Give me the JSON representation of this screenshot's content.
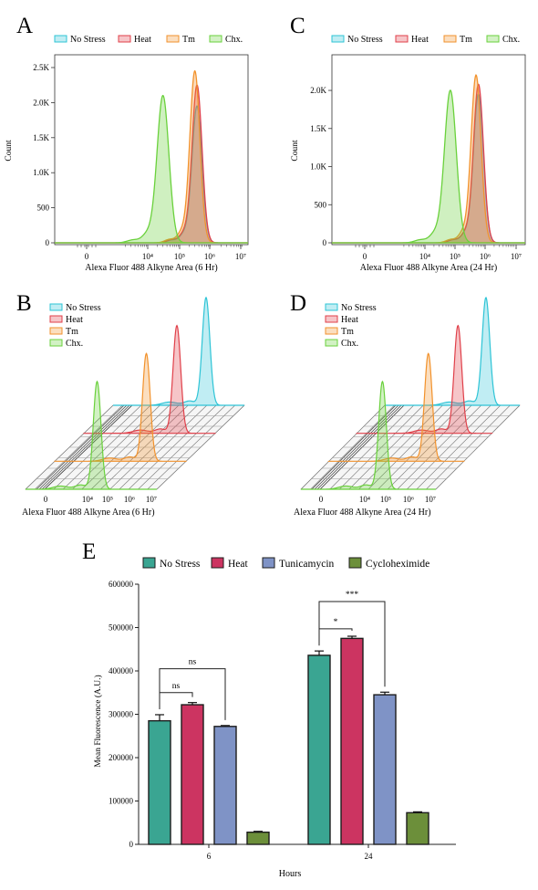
{
  "figure": {
    "panels": {
      "A": {
        "letter": "A"
      },
      "B": {
        "letter": "B"
      },
      "C": {
        "letter": "C"
      },
      "D": {
        "letter": "D"
      },
      "E": {
        "letter": "E"
      }
    }
  },
  "colors": {
    "no_stress": "#2ec4d6",
    "heat": "#e0404a",
    "tm": "#f2922c",
    "chx": "#6ad13c",
    "bar_no_stress": "#3aa592",
    "bar_heat": "#cc3461",
    "bar_tunicamycin": "#7f93c6",
    "bar_cycloheximide": "#6c8f3a"
  },
  "chart_data": [
    {
      "panel": "A",
      "type": "area",
      "xlabel": "Alexa Fluor 488 Alkyne Area (6 Hr)",
      "ylabel": "Count",
      "x_scale": "biexponential",
      "x_ticks": [
        "0",
        "10⁴",
        "10⁵",
        "10⁶",
        "10⁷"
      ],
      "y_ticks": [
        "0",
        "500",
        "1.0K",
        "1.5K",
        "2.0K",
        "2.5K"
      ],
      "ylim": [
        0,
        2500
      ],
      "legend": [
        "No Stress",
        "Heat",
        "Tm",
        "Chx."
      ],
      "series": [
        {
          "name": "No Stress",
          "peak_x": "3.5×10⁵",
          "peak_count": 1950
        },
        {
          "name": "Heat",
          "peak_x": "3.5×10⁵",
          "peak_count": 2250
        },
        {
          "name": "Tm",
          "peak_x": "3×10⁵",
          "peak_count": 2450
        },
        {
          "name": "Chx.",
          "peak_x": "3×10⁴",
          "peak_count": 2100
        }
      ]
    },
    {
      "panel": "C",
      "type": "area",
      "xlabel": "Alexa Fluor 488 Alkyne Area (24 Hr)",
      "ylabel": "Count",
      "x_scale": "biexponential",
      "x_ticks": [
        "0",
        "10⁴",
        "10⁵",
        "10⁶",
        "10⁷"
      ],
      "y_ticks": [
        "0",
        "500",
        "1.0K",
        "1.5K",
        "2.0K"
      ],
      "ylim": [
        0,
        2300
      ],
      "legend": [
        "No Stress",
        "Heat",
        "Tm",
        "Chx."
      ],
      "series": [
        {
          "name": "No Stress",
          "peak_x": "6×10⁵",
          "peak_count": 1950
        },
        {
          "name": "Heat",
          "peak_x": "6×10⁵",
          "peak_count": 2080
        },
        {
          "name": "Tm",
          "peak_x": "5×10⁵",
          "peak_count": 2200
        },
        {
          "name": "Chx.",
          "peak_x": "7×10⁴",
          "peak_count": 2000
        }
      ]
    },
    {
      "panel": "B",
      "type": "area",
      "xlabel": "Alexa Fluor 488 Alkyne Area (6 Hr)",
      "x_ticks": [
        "0",
        "10⁴",
        "10⁵",
        "10⁶",
        "10⁷"
      ],
      "legend": [
        "No Stress",
        "Heat",
        "Tm",
        "Chx."
      ],
      "series": [
        {
          "name": "No Stress",
          "peak_x": "3.5×10⁵",
          "peak_rel": 1.0
        },
        {
          "name": "Heat",
          "peak_x": "3.5×10⁵",
          "peak_rel": 1.0
        },
        {
          "name": "Tm",
          "peak_x": "3×10⁵",
          "peak_rel": 1.0
        },
        {
          "name": "Chx.",
          "peak_x": "3×10⁴",
          "peak_rel": 1.0
        }
      ]
    },
    {
      "panel": "D",
      "type": "area",
      "xlabel": "Alexa Fluor 488 Alkyne Area (24 Hr)",
      "x_ticks": [
        "0",
        "10⁴",
        "10⁵",
        "10⁶",
        "10⁷"
      ],
      "legend": [
        "No Stress",
        "Heat",
        "Tm",
        "Chx."
      ],
      "series": [
        {
          "name": "No Stress",
          "peak_x": "6×10⁵",
          "peak_rel": 1.0
        },
        {
          "name": "Heat",
          "peak_x": "6×10⁵",
          "peak_rel": 1.0
        },
        {
          "name": "Tm",
          "peak_x": "5×10⁵",
          "peak_rel": 1.0
        },
        {
          "name": "Chx.",
          "peak_x": "7×10⁴",
          "peak_rel": 1.0
        }
      ]
    },
    {
      "panel": "E",
      "type": "bar",
      "categories": [
        "6",
        "24"
      ],
      "xlabel": "Hours",
      "ylabel": "Mean Fluorescence (A.U.)",
      "ylim": [
        0,
        600000
      ],
      "y_ticks": [
        "0",
        "100000",
        "200000",
        "300000",
        "400000",
        "500000",
        "600000"
      ],
      "series": [
        {
          "name": "No Stress",
          "values": [
            285000,
            436000
          ],
          "errors": [
            14000,
            10000
          ]
        },
        {
          "name": "Heat",
          "values": [
            322000,
            475000
          ],
          "errors": [
            5000,
            5000
          ]
        },
        {
          "name": "Tunicamycin",
          "values": [
            272000,
            345000
          ],
          "errors": [
            2000,
            6000
          ]
        },
        {
          "name": "Cycloheximide",
          "values": [
            28000,
            73000
          ],
          "errors": [
            2000,
            2000
          ]
        }
      ],
      "significance": [
        {
          "group": "6",
          "from": "No Stress",
          "to": "Heat",
          "label": "ns"
        },
        {
          "group": "6",
          "from": "No Stress",
          "to": "Tunicamycin",
          "label": "ns"
        },
        {
          "group": "24",
          "from": "No Stress",
          "to": "Heat",
          "label": "*"
        },
        {
          "group": "24",
          "from": "No Stress",
          "to": "Tunicamycin",
          "label": "***"
        }
      ]
    }
  ]
}
